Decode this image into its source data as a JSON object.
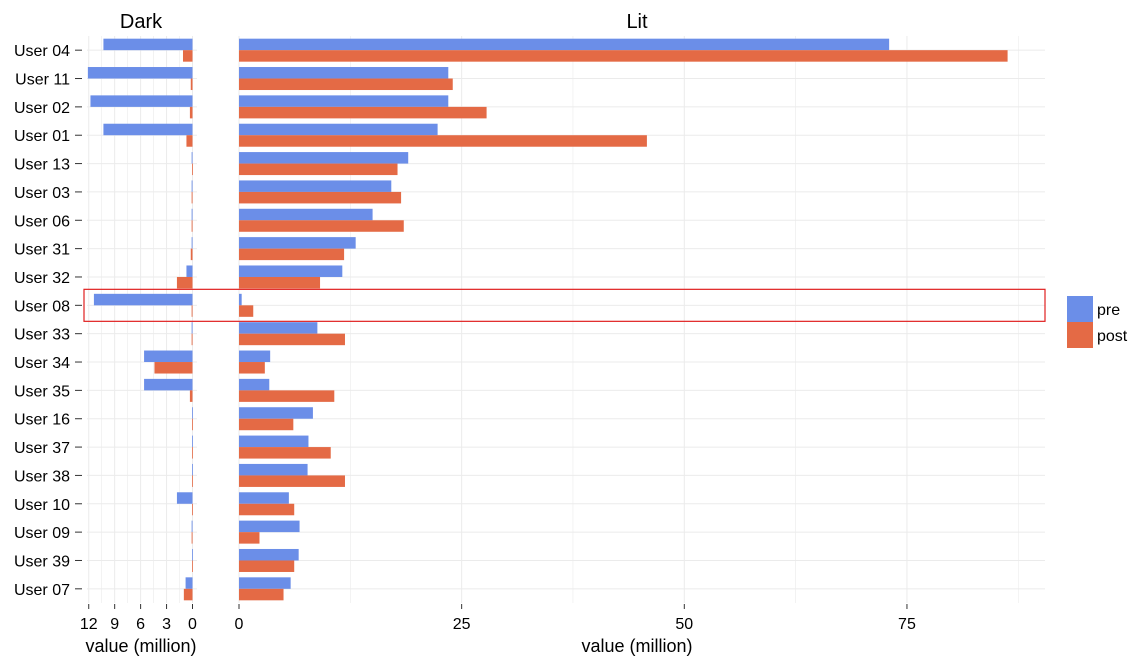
{
  "chart_data": {
    "type": "bar",
    "orientation": "horizontal",
    "grid": true,
    "legend_position": "right",
    "categories": [
      "User 04",
      "User 11",
      "User 02",
      "User 01",
      "User 13",
      "User 03",
      "User 06",
      "User 31",
      "User 32",
      "User 08",
      "User 33",
      "User 34",
      "User 35",
      "User 16",
      "User 37",
      "User 38",
      "User 10",
      "User 09",
      "User 39",
      "User 07"
    ],
    "highlighted_category": "User 08",
    "panels": [
      {
        "title": "Dark",
        "xlabel": "value (million)",
        "xlim": [
          12.2,
          0
        ],
        "reversed": true,
        "ticks": [
          12,
          9,
          6,
          3,
          0
        ],
        "series": [
          {
            "name": "pre",
            "values": [
              10.3,
              12.1,
              11.8,
              10.3,
              0.1,
              0.1,
              0.1,
              0.1,
              0.7,
              11.4,
              0.1,
              5.6,
              5.6,
              0.05,
              0.05,
              0.05,
              1.8,
              0.1,
              0.05,
              0.8
            ]
          },
          {
            "name": "post",
            "values": [
              1.1,
              0.2,
              0.3,
              0.7,
              0.05,
              0.1,
              0.1,
              0.2,
              1.8,
              0.1,
              0.1,
              4.4,
              0.3,
              0.05,
              0.05,
              0.05,
              0.05,
              0.1,
              0.05,
              1.0
            ]
          }
        ]
      },
      {
        "title": "Lit",
        "xlabel": "value (million)",
        "xlim": [
          0,
          90.5
        ],
        "ticks": [
          0,
          25,
          50,
          75
        ],
        "series": [
          {
            "name": "pre",
            "values": [
              73.0,
              23.5,
              23.5,
              22.3,
              19.0,
              17.1,
              15.0,
              13.1,
              11.6,
              0.3,
              8.8,
              3.5,
              3.4,
              8.3,
              7.8,
              7.7,
              5.6,
              6.8,
              6.7,
              5.8
            ]
          },
          {
            "name": "post",
            "values": [
              86.3,
              24.0,
              27.8,
              45.8,
              17.8,
              18.2,
              18.5,
              11.8,
              9.1,
              1.6,
              11.9,
              2.9,
              10.7,
              6.1,
              10.3,
              11.9,
              6.2,
              2.3,
              6.2,
              5.0
            ]
          }
        ]
      }
    ]
  },
  "colors": {
    "pre": "#6b8ee8",
    "post": "#e46a45",
    "grid": "#ebebeb",
    "highlight": "#e02020"
  },
  "legend": [
    {
      "label": "pre",
      "color": "#6b8ee8"
    },
    {
      "label": "post",
      "color": "#e46a45"
    }
  ]
}
